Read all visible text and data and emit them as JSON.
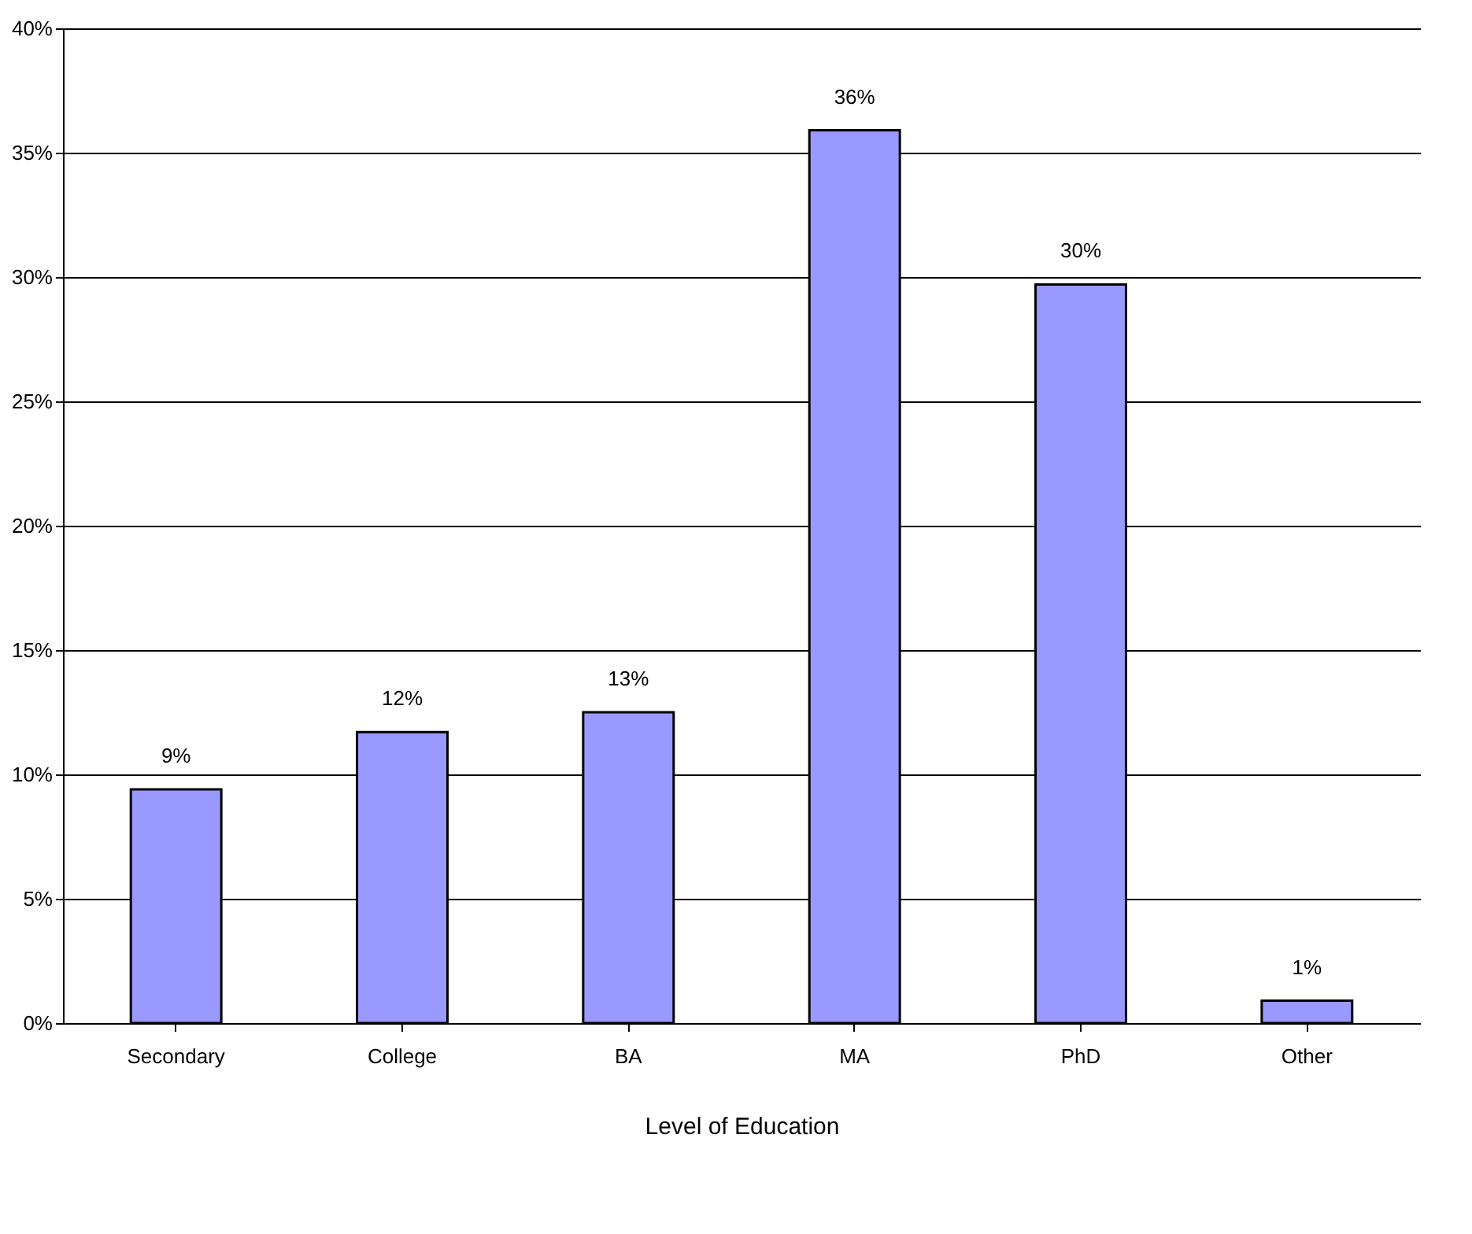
{
  "chart_data": {
    "type": "bar",
    "xlabel": "Level of Education",
    "categories": [
      "Secondary",
      "College",
      "BA",
      "MA",
      "PhD",
      "Other"
    ],
    "values": [
      9.4,
      11.7,
      12.5,
      35.9,
      29.7,
      0.9
    ],
    "value_labels": [
      "9%",
      "12%",
      "13%",
      "36%",
      "30%",
      "1%"
    ],
    "color": "#9999ff",
    "ylim": [
      0,
      40
    ],
    "yticks": [
      {
        "value": 0,
        "label": "0%"
      },
      {
        "value": 5,
        "label": "5%"
      },
      {
        "value": 10,
        "label": "10%"
      },
      {
        "value": 15,
        "label": "15%"
      },
      {
        "value": 20,
        "label": "20%"
      },
      {
        "value": 25,
        "label": "25%"
      },
      {
        "value": 30,
        "label": "30%"
      },
      {
        "value": 35,
        "label": "35%"
      },
      {
        "value": 40,
        "label": "40%"
      }
    ],
    "grid": "y"
  }
}
